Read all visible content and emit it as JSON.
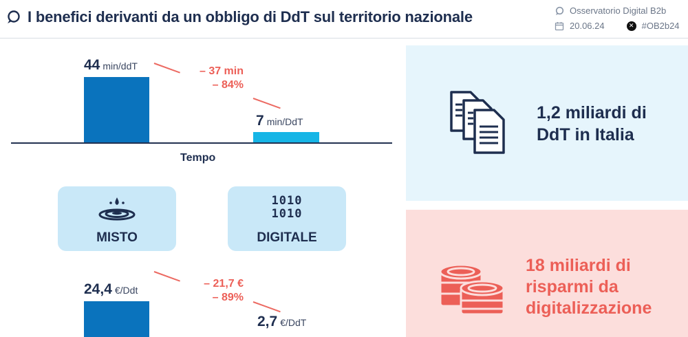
{
  "header": {
    "title": "I benefici derivanti da un obbligo di DdT sul territorio nazionale",
    "brand": "Osservatorio Digital B2b",
    "date": "20.06.24",
    "hashtag": "#OB2b24"
  },
  "time_chart": {
    "axis_label": "Tempo",
    "bars": [
      {
        "value": "44",
        "unit": "min/ddT"
      },
      {
        "value": "7",
        "unit": "min/DdT"
      }
    ],
    "delta_abs": "– 37 min",
    "delta_pct": "– 84%"
  },
  "modes": {
    "misto": "MISTO",
    "digitale": "DIGITALE",
    "binary_line_1": "1010",
    "binary_line_2": "1010"
  },
  "cost_chart": {
    "bars": [
      {
        "value": "24,4",
        "unit": "€/Ddt"
      },
      {
        "value": "2,7",
        "unit": "€/DdT"
      }
    ],
    "delta_abs": "– 21,7 €",
    "delta_pct": "– 89%"
  },
  "chart_data": [
    {
      "type": "bar",
      "categories": [
        "Misto",
        "Digitale"
      ],
      "values": [
        44,
        7
      ],
      "xlabel": "Tempo",
      "ylabel": "",
      "unit": "min/DdT"
    },
    {
      "type": "bar",
      "categories": [
        "Misto",
        "Digitale"
      ],
      "values": [
        24.4,
        2.7
      ],
      "xlabel": "",
      "ylabel": "",
      "unit": "€/DdT"
    }
  ],
  "stats": {
    "documents_line_1": "1,2 miliardi di",
    "documents_line_2": "DdT in Italia",
    "savings_line_1": "18 miliardi di",
    "savings_line_2": "risparmi da",
    "savings_line_3": "digitalizzazione"
  },
  "colors": {
    "dark_blue": "#0a73bd",
    "light_blue": "#16b5e6",
    "coral": "#ec5f57",
    "navy": "#1e2e4f"
  }
}
